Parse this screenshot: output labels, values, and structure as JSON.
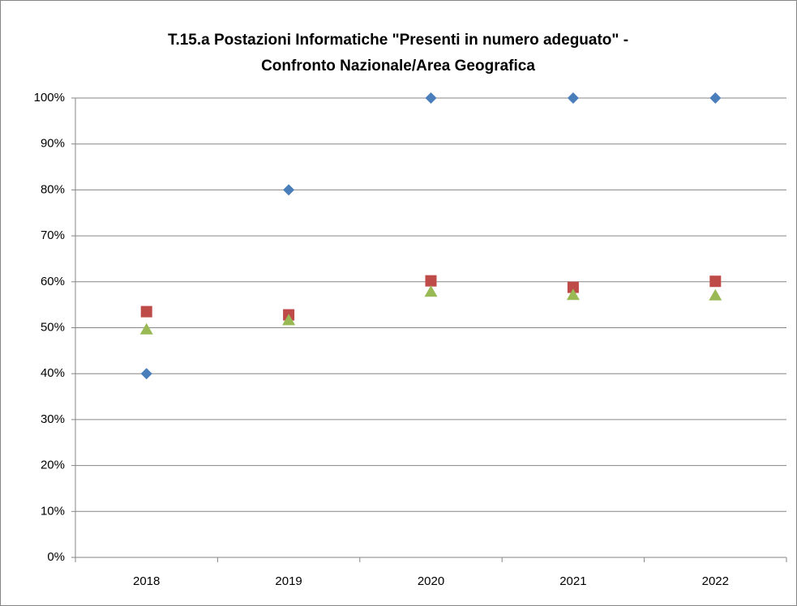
{
  "chart_data": {
    "type": "line",
    "title": [
      "T.15.a Postazioni Informatiche \"Presenti in numero adeguato\" -",
      "Confronto Nazionale/Area Geografica"
    ],
    "categories": [
      "2018",
      "2019",
      "2020",
      "2021",
      "2022"
    ],
    "series": [
      {
        "color": "#4a7ebb",
        "marker": "diamond",
        "values": [
          40,
          80,
          100,
          100,
          100
        ]
      },
      {
        "color": "#be4b48",
        "marker": "square",
        "values": [
          53.5,
          52.8,
          60.2,
          58.8,
          60.1
        ]
      },
      {
        "color": "#98b954",
        "marker": "triangle",
        "values": [
          49.6,
          51.6,
          57.8,
          57.1,
          57.0
        ]
      }
    ],
    "ylim": [
      0,
      100
    ],
    "yticks": [
      {
        "value": 0,
        "label": "0%"
      },
      {
        "value": 10,
        "label": "10%"
      },
      {
        "value": 20,
        "label": "20%"
      },
      {
        "value": 30,
        "label": "30%"
      },
      {
        "value": 40,
        "label": "40%"
      },
      {
        "value": 50,
        "label": "50%"
      },
      {
        "value": 60,
        "label": "60%"
      },
      {
        "value": 70,
        "label": "70%"
      },
      {
        "value": 80,
        "label": "80%"
      },
      {
        "value": 90,
        "label": "90%"
      },
      {
        "value": 100,
        "label": "100%"
      }
    ],
    "grid": true
  }
}
